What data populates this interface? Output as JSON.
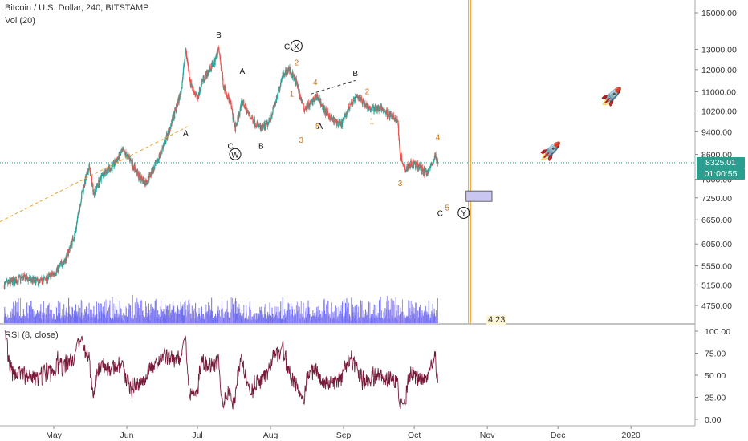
{
  "header": {
    "symbol": "Bitcoin / U.S. Dollar, 240, BITSTAMP",
    "volume_indicator": "Vol (20)",
    "rsi_indicator": "RSI (8, close)"
  },
  "price_badges": {
    "last_price": "8325.01",
    "countdown": "01:00:55"
  },
  "timer_label": "4:23",
  "colors": {
    "up": "#26a69a",
    "down": "#ef5350",
    "volume": "#6f6ff0",
    "rsi": "#7a1a3a",
    "vertical_line": "#f0a020",
    "wave_number": "#c8781a",
    "rocket": "#2ecc40",
    "badge": "#2b9e8f",
    "box": "#c9c6f0"
  },
  "chart_data": [
    {
      "type": "candlestick",
      "title": "Bitcoin / U.S. Dollar, 240, BITSTAMP",
      "y_scale": "log",
      "x_ticks": [
        "May",
        "Jun",
        "Jul",
        "Aug",
        "Sep",
        "Oct",
        "Nov",
        "Dec",
        "2020"
      ],
      "y_ticks": [
        15000,
        13000,
        12000,
        11000,
        10200,
        9400,
        8600,
        7800,
        7250,
        6650,
        6050,
        5550,
        5150,
        4750
      ],
      "y_tick_labels": [
        "15000.00",
        "13000.00",
        "12000.00",
        "11000.00",
        "10200.00",
        "9400.00",
        "8600.00",
        "7800.00",
        "7250.00",
        "6650.00",
        "6050.00",
        "5550.00",
        "5150.00",
        "4750.00"
      ],
      "ylim": [
        4500,
        16000
      ],
      "last_price": 8325.01,
      "close_path": [
        [
          "2019-04-10",
          5150
        ],
        [
          "2019-04-18",
          5300
        ],
        [
          "2019-04-25",
          5200
        ],
        [
          "2019-05-01",
          5380
        ],
        [
          "2019-05-06",
          5700
        ],
        [
          "2019-05-10",
          6300
        ],
        [
          "2019-05-13",
          7400
        ],
        [
          "2019-05-16",
          8200
        ],
        [
          "2019-05-18",
          7400
        ],
        [
          "2019-05-22",
          8000
        ],
        [
          "2019-05-26",
          8200
        ],
        [
          "2019-05-30",
          8700
        ],
        [
          "2019-06-02",
          8500
        ],
        [
          "2019-06-06",
          7900
        ],
        [
          "2019-06-09",
          7700
        ],
        [
          "2019-06-13",
          8200
        ],
        [
          "2019-06-17",
          9000
        ],
        [
          "2019-06-21",
          10000
        ],
        [
          "2019-06-24",
          11000
        ],
        [
          "2019-06-26",
          13000
        ],
        [
          "2019-06-28",
          11400
        ],
        [
          "2019-07-01",
          10700
        ],
        [
          "2019-07-03",
          11500
        ],
        [
          "2019-07-08",
          12300
        ],
        [
          "2019-07-10",
          13000
        ],
        [
          "2019-07-12",
          11300
        ],
        [
          "2019-07-15",
          10500
        ],
        [
          "2019-07-17",
          9500
        ],
        [
          "2019-07-20",
          10600
        ],
        [
          "2019-07-23",
          10000
        ],
        [
          "2019-07-28",
          9500
        ],
        [
          "2019-07-31",
          9700
        ],
        [
          "2019-08-04",
          10800
        ],
        [
          "2019-08-06",
          11800
        ],
        [
          "2019-08-09",
          12000
        ],
        [
          "2019-08-12",
          11400
        ],
        [
          "2019-08-15",
          10300
        ],
        [
          "2019-08-18",
          10500
        ],
        [
          "2019-08-21",
          10800
        ],
        [
          "2019-08-24",
          10200
        ],
        [
          "2019-08-28",
          9800
        ],
        [
          "2019-08-31",
          9650
        ],
        [
          "2019-09-04",
          10500
        ],
        [
          "2019-09-07",
          10800
        ],
        [
          "2019-09-12",
          10300
        ],
        [
          "2019-09-17",
          10300
        ],
        [
          "2019-09-21",
          10000
        ],
        [
          "2019-09-24",
          9800
        ],
        [
          "2019-09-25",
          8600
        ],
        [
          "2019-09-27",
          8150
        ],
        [
          "2019-09-30",
          8300
        ],
        [
          "2019-10-03",
          8200
        ],
        [
          "2019-10-06",
          8000
        ],
        [
          "2019-10-08",
          8200
        ],
        [
          "2019-10-10",
          8550
        ],
        [
          "2019-10-11",
          8325
        ]
      ],
      "wave_labels_black": [
        {
          "text": "B",
          "date": "2019-07-10",
          "price": 13600
        },
        {
          "text": "A",
          "date": "2019-07-20",
          "price": 11800
        },
        {
          "text": "A",
          "date": "2019-06-26",
          "price": 9250
        },
        {
          "text": "C",
          "date": "2019-07-15",
          "price": 8800
        },
        {
          "text": "W",
          "date": "2019-07-17",
          "price": 8500,
          "circled": true
        },
        {
          "text": "B",
          "date": "2019-07-28",
          "price": 8800
        },
        {
          "text": "C",
          "date": "2019-08-08",
          "price": 13000
        },
        {
          "text": "X",
          "date": "2019-08-12",
          "price": 13000,
          "circled": true
        },
        {
          "text": "B",
          "date": "2019-09-06",
          "price": 11700
        },
        {
          "text": "A",
          "date": "2019-08-22",
          "price": 9500
        },
        {
          "text": "C",
          "date": "2019-10-12",
          "price": 6750
        },
        {
          "text": "Y",
          "date": "2019-10-22",
          "price": 6750,
          "circled": true
        }
      ],
      "wave_labels_orange": [
        {
          "text": "2",
          "date": "2019-08-12",
          "price": 12200
        },
        {
          "text": "4",
          "date": "2019-08-20",
          "price": 11300
        },
        {
          "text": "1",
          "date": "2019-08-10",
          "price": 10800
        },
        {
          "text": "3",
          "date": "2019-08-14",
          "price": 9000
        },
        {
          "text": "5",
          "date": "2019-08-21",
          "price": 9500
        },
        {
          "text": "2",
          "date": "2019-09-11",
          "price": 10900
        },
        {
          "text": "1",
          "date": "2019-09-13",
          "price": 9700
        },
        {
          "text": "3",
          "date": "2019-09-25",
          "price": 7600
        },
        {
          "text": "4",
          "date": "2019-10-11",
          "price": 9100
        },
        {
          "text": "5",
          "date": "2019-10-15",
          "price": 6900
        }
      ],
      "vertical_line_date": "2019-10-24"
    },
    {
      "type": "bar",
      "title": "Vol (20)",
      "series": [
        {
          "name": "Vol (20)"
        }
      ]
    },
    {
      "type": "line",
      "title": "RSI (8, close)",
      "y_ticks": [
        100,
        75,
        50,
        25,
        0
      ],
      "y_tick_labels": [
        "100.00",
        "75.00",
        "50.00",
        "25.00",
        "0.00"
      ],
      "ylim": [
        0,
        100
      ]
    }
  ]
}
